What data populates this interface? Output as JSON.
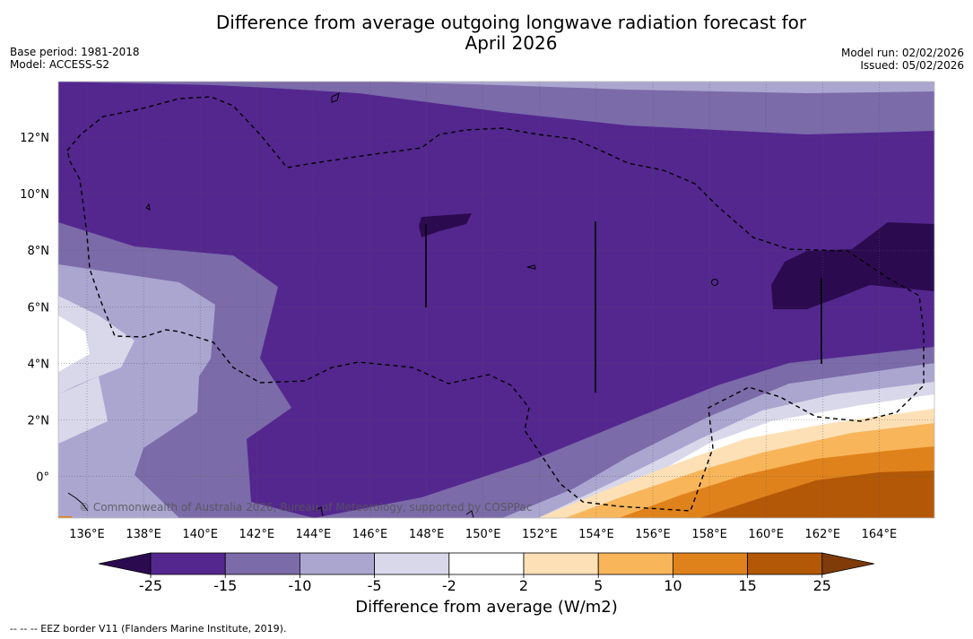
{
  "header": {
    "title_line1": "Difference from average outgoing longwave radiation forecast for",
    "title_line2": "April 2026",
    "base_period": "Base period: 1981-2018",
    "model": "Model: ACCESS-S2",
    "model_run": "Model run: 02/02/2026",
    "issued": "Issued: 05/02/2026"
  },
  "map": {
    "lon_labels": [
      "136°E",
      "138°E",
      "140°E",
      "142°E",
      "144°E",
      "146°E",
      "148°E",
      "150°E",
      "152°E",
      "154°E",
      "156°E",
      "158°E",
      "160°E",
      "162°E",
      "164°E"
    ],
    "lat_labels": [
      "12°N",
      "10°N",
      "8°N",
      "6°N",
      "4°N",
      "2°N",
      "0°"
    ],
    "copyright": "© Commonwealth of Australia 2026, Bureau of Meteorology, supported by COSPPac"
  },
  "colorbar": {
    "title": "Difference from average (W/m2)",
    "ticks": [
      "-25",
      "-15",
      "-10",
      "-5",
      "-2",
      "2",
      "5",
      "10",
      "15",
      "25"
    ],
    "colors": [
      "#2c0a50",
      "#54278f",
      "#7b6ba9",
      "#aba6d0",
      "#d9d8ea",
      "#ffffff",
      "#fde0b6",
      "#f8b55a",
      "#e0821b",
      "#b35806",
      "#7f3b08"
    ]
  },
  "footnote": "-- -- -- EEZ border V11 (Flanders Marine Institute, 2019)."
}
